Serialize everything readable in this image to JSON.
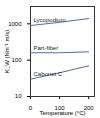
{
  "chart_data": {
    "type": "line",
    "xlabel": "Temperature (°C)",
    "ylabel": "K_W (Nm⁻¹ m/s)",
    "x": [
      0,
      100,
      200
    ],
    "series": [
      {
        "name": "Lycopodium",
        "color": "#4a6f9c",
        "values": [
          900,
          1100,
          1400
        ]
      },
      {
        "name": "Part-fiber",
        "color": "#4a6f9c",
        "values": [
          160,
          160,
          170
        ]
      },
      {
        "name": "Cabonet C",
        "color": "#4a6f9c",
        "values": [
          30,
          45,
          70
        ]
      }
    ],
    "xlim": [
      0,
      220
    ],
    "xticks": [
      0,
      100,
      200
    ],
    "ylim": [
      10,
      3000
    ],
    "yticks": [
      10,
      100,
      1000
    ],
    "log": "y",
    "grid": false
  }
}
